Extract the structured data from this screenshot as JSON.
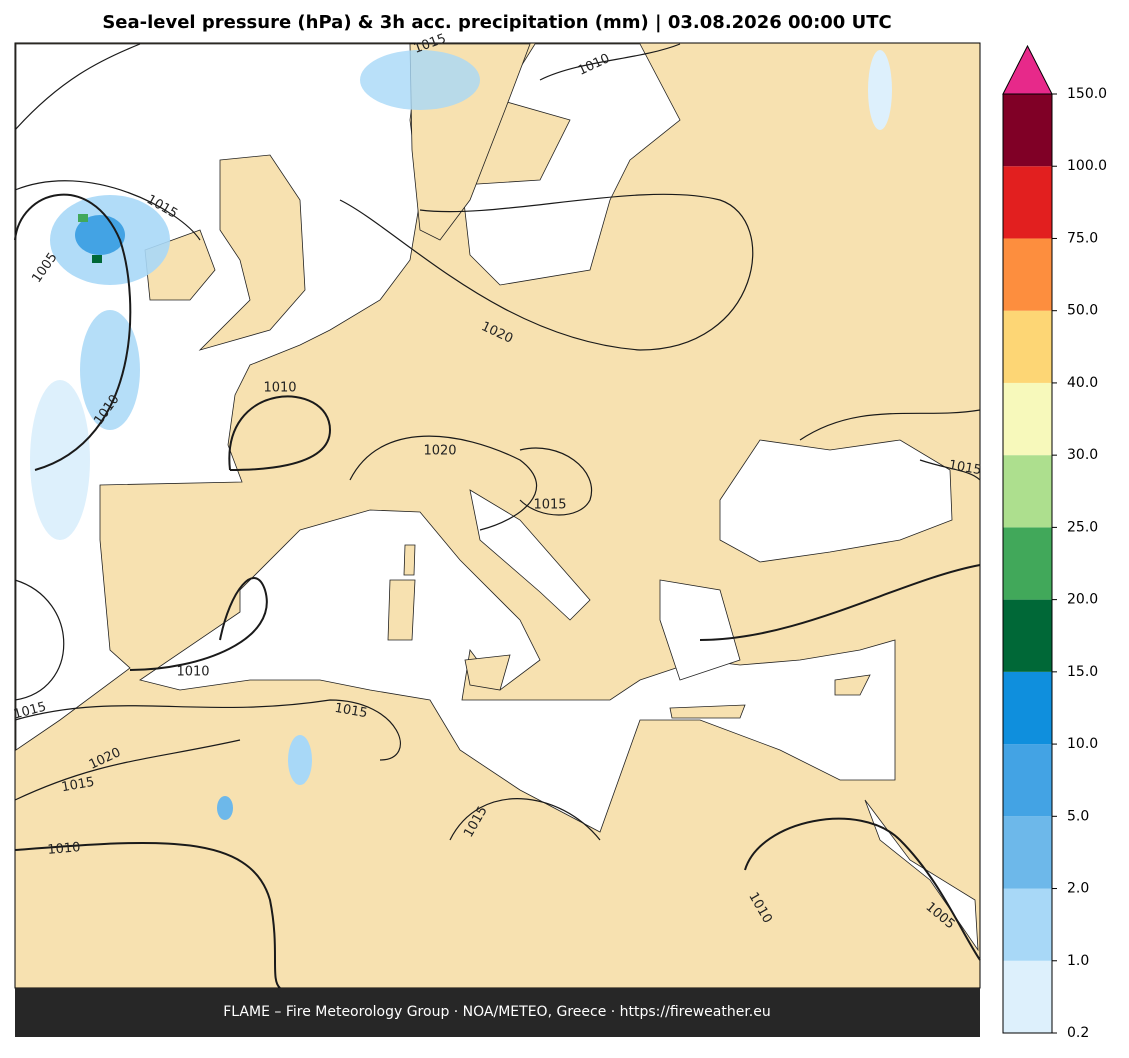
{
  "header": {
    "title": "Sea-level pressure (hPa) & 3h acc. precipitation (mm)  |  03.08.2026 00:00 UTC"
  },
  "footer": {
    "text": "FLAME – Fire Meteorology Group · NOA/METEO, Greece · https://fireweather.eu"
  },
  "colorbar": {
    "ticks": [
      {
        "value": 0.2,
        "label": "0.2"
      },
      {
        "value": 1,
        "label": "1.0"
      },
      {
        "value": 2,
        "label": "2.0"
      },
      {
        "value": 5,
        "label": "5.0"
      },
      {
        "value": 10,
        "label": "10.0"
      },
      {
        "value": 15,
        "label": "15.0"
      },
      {
        "value": 20,
        "label": "20.0"
      },
      {
        "value": 25,
        "label": "25.0"
      },
      {
        "value": 30,
        "label": "30.0"
      },
      {
        "value": 40,
        "label": "40.0"
      },
      {
        "value": 50,
        "label": "50.0"
      },
      {
        "value": 75,
        "label": "75.0"
      },
      {
        "value": 100,
        "label": "100.0"
      },
      {
        "value": 150,
        "label": "150.0"
      }
    ],
    "colors": [
      "#ddf0fc",
      "#a8d8f7",
      "#6db8ea",
      "#43a3e4",
      "#0f8fdd",
      "#006837",
      "#41a85a",
      "#addf8e",
      "#f7f9bb",
      "#fdd675",
      "#fd8e3e",
      "#e21f1f",
      "#800026"
    ],
    "extend_color": "#e7298a"
  },
  "contour_labels": [
    "1010",
    "1015",
    "1005",
    "1010",
    "1010",
    "1020",
    "1020",
    "1015",
    "1015",
    "1010",
    "1015",
    "1015",
    "1020",
    "1015",
    "1015",
    "1010",
    "1010",
    "1005",
    "1015"
  ]
}
